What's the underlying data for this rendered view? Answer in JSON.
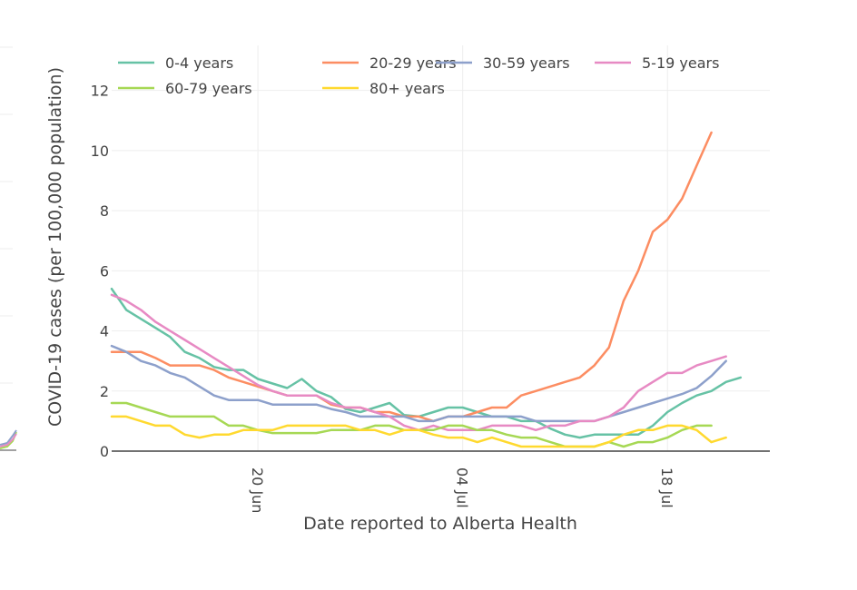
{
  "chart_data": {
    "type": "line",
    "title": "",
    "xlabel": "Date reported to Alberta Health",
    "ylabel": "COVID-19 cases (per 100,000 population)",
    "x_start_day": 0,
    "x_dates_note": "day 0 = 10 Jun",
    "xlim_days": [
      0,
      45
    ],
    "ylim": [
      0,
      13.5
    ],
    "y_ticks": [
      0,
      2,
      4,
      6,
      8,
      10,
      12
    ],
    "x_ticks": [
      {
        "day": 10,
        "label": "20 Jun"
      },
      {
        "day": 24,
        "label": "04 Jul"
      },
      {
        "day": 38,
        "label": "18 Jul"
      }
    ],
    "series": [
      {
        "name": "0-4 years",
        "color": "#66c2a5",
        "values": [
          5.4,
          4.7,
          4.4,
          4.1,
          3.8,
          3.3,
          3.1,
          2.8,
          2.7,
          2.7,
          2.4,
          2.25,
          2.1,
          2.4,
          2.0,
          1.8,
          1.4,
          1.3,
          1.45,
          1.6,
          1.2,
          1.15,
          1.3,
          1.45,
          1.45,
          1.3,
          1.15,
          1.15,
          1.0,
          1.0,
          0.75,
          0.55,
          0.45,
          0.55,
          0.55,
          0.55,
          0.55,
          0.85,
          1.3,
          1.6,
          1.85,
          2.0,
          2.3,
          2.45
        ]
      },
      {
        "name": "20-29 years",
        "color": "#fc8d62",
        "values": [
          3.3,
          3.3,
          3.3,
          3.1,
          2.85,
          2.85,
          2.85,
          2.7,
          2.45,
          2.3,
          2.15,
          2.0,
          1.85,
          1.85,
          1.85,
          1.55,
          1.45,
          1.45,
          1.3,
          1.3,
          1.15,
          1.15,
          1.0,
          1.15,
          1.15,
          1.3,
          1.45,
          1.45,
          1.85,
          2.0,
          2.15,
          2.3,
          2.45,
          2.85,
          3.45,
          5.0,
          6.0,
          7.3,
          7.7,
          8.4,
          9.5,
          10.6
        ]
      },
      {
        "name": "30-59 years",
        "color": "#8da0cb",
        "values": [
          3.5,
          3.3,
          3.0,
          2.85,
          2.6,
          2.45,
          2.15,
          1.85,
          1.7,
          1.7,
          1.7,
          1.55,
          1.55,
          1.55,
          1.55,
          1.4,
          1.3,
          1.15,
          1.15,
          1.15,
          1.15,
          1.0,
          1.0,
          1.15,
          1.15,
          1.15,
          1.15,
          1.15,
          1.15,
          1.0,
          1.0,
          1.0,
          1.0,
          1.0,
          1.15,
          1.3,
          1.45,
          1.6,
          1.75,
          1.9,
          2.1,
          2.5,
          3.0
        ]
      },
      {
        "name": "5-19 years",
        "color": "#e78ac3",
        "values": [
          5.2,
          5.0,
          4.7,
          4.3,
          4.0,
          3.7,
          3.4,
          3.1,
          2.8,
          2.5,
          2.2,
          2.0,
          1.85,
          1.85,
          1.85,
          1.6,
          1.45,
          1.45,
          1.3,
          1.15,
          0.85,
          0.7,
          0.85,
          0.7,
          0.7,
          0.7,
          0.85,
          0.85,
          0.85,
          0.7,
          0.85,
          0.85,
          1.0,
          1.0,
          1.15,
          1.45,
          2.0,
          2.3,
          2.6,
          2.6,
          2.85,
          3.0,
          3.15
        ]
      },
      {
        "name": "60-79 years",
        "color": "#a6d854",
        "values": [
          1.6,
          1.6,
          1.45,
          1.3,
          1.15,
          1.15,
          1.15,
          1.15,
          0.85,
          0.85,
          0.7,
          0.6,
          0.6,
          0.6,
          0.6,
          0.7,
          0.7,
          0.7,
          0.85,
          0.85,
          0.7,
          0.7,
          0.7,
          0.85,
          0.85,
          0.7,
          0.7,
          0.55,
          0.45,
          0.45,
          0.3,
          0.15,
          0.15,
          0.15,
          0.3,
          0.15,
          0.3,
          0.3,
          0.45,
          0.7,
          0.85,
          0.85
        ]
      },
      {
        "name": "80+ years",
        "color": "#ffd92f",
        "values": [
          1.15,
          1.15,
          1.0,
          0.85,
          0.85,
          0.55,
          0.45,
          0.55,
          0.55,
          0.7,
          0.7,
          0.7,
          0.85,
          0.85,
          0.85,
          0.85,
          0.85,
          0.7,
          0.7,
          0.55,
          0.7,
          0.7,
          0.55,
          0.45,
          0.45,
          0.3,
          0.45,
          0.3,
          0.15,
          0.15,
          0.15,
          0.15,
          0.15,
          0.15,
          0.3,
          0.55,
          0.7,
          0.7,
          0.85,
          0.85,
          0.7,
          0.3,
          0.45
        ]
      }
    ],
    "legend_position": "top"
  }
}
